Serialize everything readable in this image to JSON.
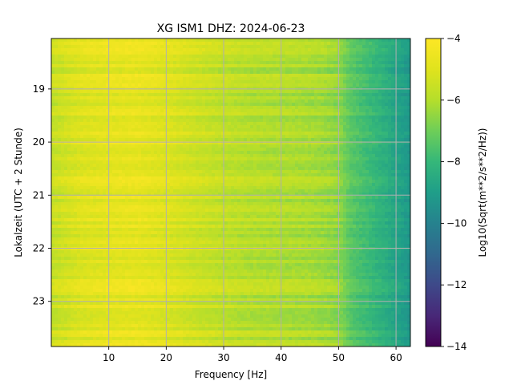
{
  "chart_data": {
    "type": "heatmap",
    "title": "XG ISM1  DHZ: 2024-06-23",
    "xlabel": "Frequency [Hz]",
    "ylabel": "Lokalzeit (UTC + 2 Stunde)",
    "colorbar_label": "Log10(Sqrt(m**2/s**2/Hz))",
    "colormap": "viridis",
    "xlim": [
      0,
      62.5
    ],
    "ylim": [
      23.85,
      18.05
    ],
    "clim": [
      -14,
      -4
    ],
    "x_ticks": [
      "10",
      "20",
      "30",
      "40",
      "50",
      "60"
    ],
    "x_tick_values": [
      10,
      20,
      30,
      40,
      50,
      60
    ],
    "y_ticks": [
      "19",
      "20",
      "21",
      "22",
      "23"
    ],
    "y_tick_values": [
      19,
      20,
      21,
      22,
      23
    ],
    "colorbar_ticks": [
      "−4",
      "−6",
      "−8",
      "−10",
      "−12",
      "−14"
    ],
    "colorbar_tick_values": [
      -4,
      -6,
      -8,
      -10,
      -12,
      -14
    ],
    "grid": true,
    "approx_level_vs_frequency": {
      "x": [
        0,
        5,
        10,
        15,
        20,
        25,
        30,
        35,
        40,
        45,
        48,
        50,
        52,
        55,
        58,
        60,
        62.5
      ],
      "y": [
        -5.6,
        -5.0,
        -4.8,
        -4.7,
        -5.0,
        -5.4,
        -5.7,
        -5.9,
        -6.0,
        -6.1,
        -6.3,
        -6.5,
        -7.3,
        -7.8,
        -8.3,
        -8.7,
        -9.2
      ]
    }
  }
}
